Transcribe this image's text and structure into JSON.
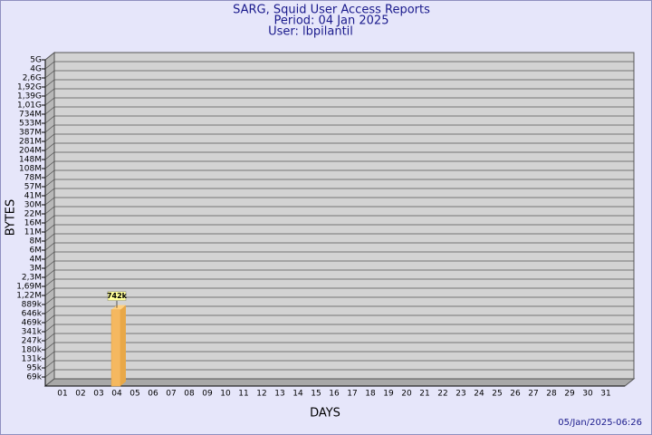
{
  "chart_data": {
    "type": "bar3d",
    "title": "SARG, Squid User Access Reports",
    "subtitle": "Period: 04 Jan 2025",
    "user": "User: lbpilantil",
    "ylabel": "BYTES",
    "xlabel": "DAYS",
    "timestamp": "05/Jan/2025-06:26",
    "color": "#f5b860",
    "categories": [
      "01",
      "02",
      "03",
      "04",
      "05",
      "06",
      "07",
      "08",
      "09",
      "10",
      "11",
      "12",
      "13",
      "14",
      "15",
      "16",
      "17",
      "18",
      "19",
      "20",
      "21",
      "22",
      "23",
      "24",
      "25",
      "26",
      "27",
      "28",
      "29",
      "30",
      "31"
    ],
    "values": [
      null,
      null,
      null,
      742000,
      null,
      null,
      null,
      null,
      null,
      null,
      null,
      null,
      null,
      null,
      null,
      null,
      null,
      null,
      null,
      null,
      null,
      null,
      null,
      null,
      null,
      null,
      null,
      null,
      null,
      null,
      null
    ],
    "value_labels": [
      null,
      null,
      null,
      "742k",
      null,
      null,
      null,
      null,
      null,
      null,
      null,
      null,
      null,
      null,
      null,
      null,
      null,
      null,
      null,
      null,
      null,
      null,
      null,
      null,
      null,
      null,
      null,
      null,
      null,
      null,
      null
    ],
    "ylim": [
      50000,
      5000000000
    ],
    "yticks": [
      {
        "value": 69000,
        "label": "69k"
      },
      {
        "value": 95000,
        "label": "95k"
      },
      {
        "value": 131000,
        "label": "131k"
      },
      {
        "value": 180000,
        "label": "180k"
      },
      {
        "value": 247000,
        "label": "247k"
      },
      {
        "value": 341000,
        "label": "341k"
      },
      {
        "value": 469000,
        "label": "469k"
      },
      {
        "value": 646000,
        "label": "646k"
      },
      {
        "value": 889000,
        "label": "889k"
      },
      {
        "value": 1220000,
        "label": "1,22M"
      },
      {
        "value": 1690000,
        "label": "1,69M"
      },
      {
        "value": 2300000,
        "label": "2,3M"
      },
      {
        "value": 3000000,
        "label": "3M"
      },
      {
        "value": 4000000,
        "label": "4M"
      },
      {
        "value": 6000000,
        "label": "6M"
      },
      {
        "value": 8000000,
        "label": "8M"
      },
      {
        "value": 11000000,
        "label": "11M"
      },
      {
        "value": 16000000,
        "label": "16M"
      },
      {
        "value": 22000000,
        "label": "22M"
      },
      {
        "value": 30000000,
        "label": "30M"
      },
      {
        "value": 41000000,
        "label": "41M"
      },
      {
        "value": 57000000,
        "label": "57M"
      },
      {
        "value": 78000000,
        "label": "78M"
      },
      {
        "value": 108000000,
        "label": "108M"
      },
      {
        "value": 148000000,
        "label": "148M"
      },
      {
        "value": 204000000,
        "label": "204M"
      },
      {
        "value": 281000000,
        "label": "281M"
      },
      {
        "value": 387000000,
        "label": "387M"
      },
      {
        "value": 533000000,
        "label": "533M"
      },
      {
        "value": 734000000,
        "label": "734M"
      },
      {
        "value": 1010000000,
        "label": "1,01G"
      },
      {
        "value": 1390000000,
        "label": "1,39G"
      },
      {
        "value": 1920000000,
        "label": "1,92G"
      },
      {
        "value": 2600000000,
        "label": "2,6G"
      },
      {
        "value": 4000000000,
        "label": "4G"
      },
      {
        "value": 5000000000,
        "label": "5G"
      }
    ],
    "grid": true
  }
}
